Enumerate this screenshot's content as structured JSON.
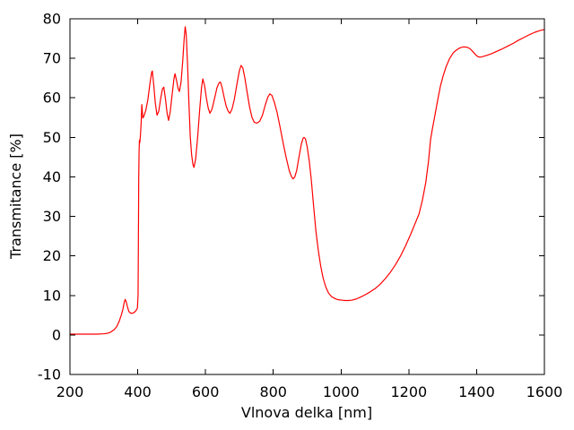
{
  "figure": {
    "background": "#ffffff",
    "plot_background": "#ffffff"
  },
  "chart_data": {
    "type": "line",
    "xlabel": "Vlnova delka [nm]",
    "ylabel": "Transmitance [%]",
    "xlim": [
      200,
      1600
    ],
    "ylim": [
      -10,
      80
    ],
    "xticks": [
      200,
      400,
      600,
      800,
      1000,
      1200,
      1400,
      1600
    ],
    "yticks": [
      -10,
      0,
      10,
      20,
      30,
      40,
      50,
      60,
      70,
      80
    ],
    "grid": false,
    "legend": "none",
    "line_color": "#ff0000",
    "axis_color": "#000000",
    "text_color": "#000000",
    "series": [
      {
        "name": "transmittance-spectrum",
        "x": [
          200,
          240,
          280,
          300,
          310,
          320,
          330,
          338,
          345,
          351,
          356,
          360,
          363,
          366,
          370,
          374,
          379,
          385,
          391,
          396,
          399,
          401,
          402,
          403,
          404,
          405,
          406,
          408,
          410,
          412,
          413,
          415,
          418,
          424,
          430,
          436,
          441,
          443,
          447,
          452,
          457,
          462,
          468,
          473,
          477,
          482,
          487,
          491,
          496,
          502,
          507,
          510,
          514,
          519,
          523,
          528,
          533,
          537,
          540,
          543,
          547,
          551,
          555,
          559,
          563,
          566,
          571,
          577,
          583,
          588,
          592,
          597,
          603,
          608,
          613,
          619,
          626,
          634,
          640,
          644,
          649,
          655,
          661,
          667,
          672,
          678,
          685,
          693,
          700,
          705,
          710,
          716,
          723,
          730,
          737,
          744,
          752,
          760,
          768,
          776,
          784,
          790,
          796,
          803,
          811,
          820,
          829,
          838,
          847,
          853,
          858,
          863,
          869,
          876,
          883,
          888,
          891,
          895,
          900,
          906,
          912,
          919,
          926,
          933,
          940,
          947,
          955,
          963,
          972,
          982,
          992,
          1002,
          1012,
          1022,
          1032,
          1045,
          1058,
          1072,
          1086,
          1100,
          1115,
          1130,
          1145,
          1160,
          1175,
          1190,
          1205,
          1218,
          1230,
          1240,
          1250,
          1258,
          1264,
          1270,
          1277,
          1285,
          1293,
          1301,
          1310,
          1320,
          1331,
          1342,
          1352,
          1362,
          1372,
          1381,
          1390,
          1397,
          1404,
          1411,
          1420,
          1432,
          1445,
          1460,
          1476,
          1492,
          1508,
          1524,
          1540,
          1556,
          1572,
          1586,
          1600
        ],
        "y": [
          0.2,
          0.2,
          0.2,
          0.3,
          0.4,
          0.7,
          1.3,
          2.1,
          3.4,
          4.9,
          6.4,
          8.2,
          9.0,
          8.4,
          7.0,
          5.9,
          5.5,
          5.5,
          5.8,
          6.3,
          6.8,
          10,
          24,
          40,
          46.5,
          49.3,
          48.6,
          50.5,
          53.5,
          58.3,
          57.2,
          54.9,
          55.3,
          56.9,
          59.6,
          63.6,
          66.4,
          66.8,
          63.5,
          58.6,
          55.6,
          56.6,
          60.0,
          62.3,
          62.7,
          59.6,
          55.9,
          54.3,
          56.6,
          61.2,
          64.9,
          66.1,
          64.6,
          62.4,
          61.6,
          64.1,
          69.6,
          75.0,
          78.0,
          76.1,
          68.5,
          58.8,
          50.2,
          45.6,
          43.1,
          42.4,
          44.6,
          50.3,
          57.2,
          62.4,
          64.8,
          63.2,
          59.7,
          57.4,
          56.1,
          57.1,
          59.6,
          62.6,
          63.8,
          64.0,
          62.6,
          60.1,
          57.9,
          56.6,
          56.1,
          57.1,
          59.6,
          63.6,
          66.9,
          68.2,
          67.6,
          65.1,
          61.3,
          57.7,
          55.1,
          53.8,
          53.6,
          54.1,
          55.6,
          58.1,
          60.2,
          61.0,
          60.6,
          58.9,
          56.4,
          52.6,
          48.6,
          44.9,
          41.6,
          40.2,
          39.5,
          39.9,
          41.6,
          45.1,
          48.4,
          49.8,
          50.0,
          49.6,
          47.6,
          44.1,
          39.4,
          32.6,
          26.1,
          21.3,
          17.4,
          14.4,
          12.1,
          10.6,
          9.7,
          9.2,
          8.9,
          8.8,
          8.7,
          8.7,
          8.8,
          9.1,
          9.6,
          10.2,
          10.9,
          11.7,
          12.8,
          14.2,
          15.8,
          17.7,
          19.9,
          22.5,
          25.4,
          28.1,
          30.6,
          34.1,
          38.6,
          43.9,
          49.4,
          52.4,
          55.6,
          59.4,
          62.9,
          65.5,
          67.9,
          69.9,
          71.4,
          72.2,
          72.7,
          72.9,
          72.8,
          72.4,
          71.6,
          70.9,
          70.4,
          70.3,
          70.5,
          70.8,
          71.2,
          71.8,
          72.4,
          73.1,
          73.8,
          74.6,
          75.3,
          76.0,
          76.6,
          77.0,
          77.3
        ]
      }
    ]
  }
}
